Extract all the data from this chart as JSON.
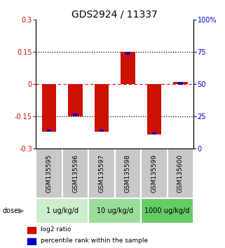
{
  "title": "GDS2924 / 11337",
  "samples": [
    "GSM135595",
    "GSM135596",
    "GSM135597",
    "GSM135598",
    "GSM135599",
    "GSM135600"
  ],
  "log2_ratio": [
    -0.222,
    -0.148,
    -0.222,
    0.15,
    -0.235,
    0.01
  ],
  "percentile": [
    20,
    25,
    23,
    72,
    20,
    51
  ],
  "ylim_left": [
    -0.3,
    0.3
  ],
  "ylim_right": [
    0,
    100
  ],
  "yticks_left": [
    -0.3,
    -0.15,
    0,
    0.15,
    0.3
  ],
  "yticks_right": [
    0,
    25,
    50,
    75,
    100
  ],
  "ytick_labels_left": [
    "-0.3",
    "-0.15",
    "0",
    "0.15",
    "0.3"
  ],
  "ytick_labels_right": [
    "0",
    "25",
    "50",
    "75",
    "100%"
  ],
  "hlines_dotted": [
    0.15,
    -0.15
  ],
  "hline_dashed": 0.0,
  "bar_width": 0.55,
  "blue_bar_width": 0.18,
  "blue_bar_height": 0.012,
  "red_color": "#cc1100",
  "blue_color": "#0000cc",
  "dose_groups": [
    {
      "label": "1 ug/kg/d",
      "samples": [
        0,
        1
      ],
      "color": "#cceecc"
    },
    {
      "label": "10 ug/kg/d",
      "samples": [
        2,
        3
      ],
      "color": "#99dd99"
    },
    {
      "label": "1000 ug/kg/d",
      "samples": [
        4,
        5
      ],
      "color": "#66cc66"
    }
  ],
  "dose_label": "dose",
  "legend_red": "log2 ratio",
  "legend_blue": "percentile rank within the sample",
  "title_fontsize": 10,
  "tick_fontsize": 7,
  "sample_label_fontsize": 6.5
}
